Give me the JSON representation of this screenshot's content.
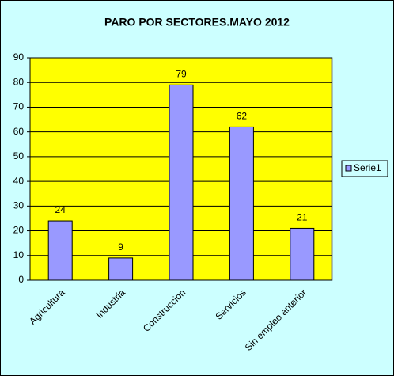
{
  "chart_data": {
    "type": "bar",
    "title": "PARO POR SECTORES.MAYO 2012",
    "categories": [
      "Agricultura",
      "Industria",
      "Construccion",
      "Servicios",
      "Sin empleo anterior"
    ],
    "series": [
      {
        "name": "Serie1",
        "color": "#9999ff",
        "values": [
          24,
          9,
          79,
          62,
          21
        ]
      }
    ],
    "ylim": [
      0,
      90
    ],
    "yticks": [
      0,
      10,
      20,
      30,
      40,
      50,
      60,
      70,
      80,
      90
    ],
    "grid": true,
    "legend": "right",
    "plot_background": "#ffff00",
    "background": "#ccffff"
  }
}
